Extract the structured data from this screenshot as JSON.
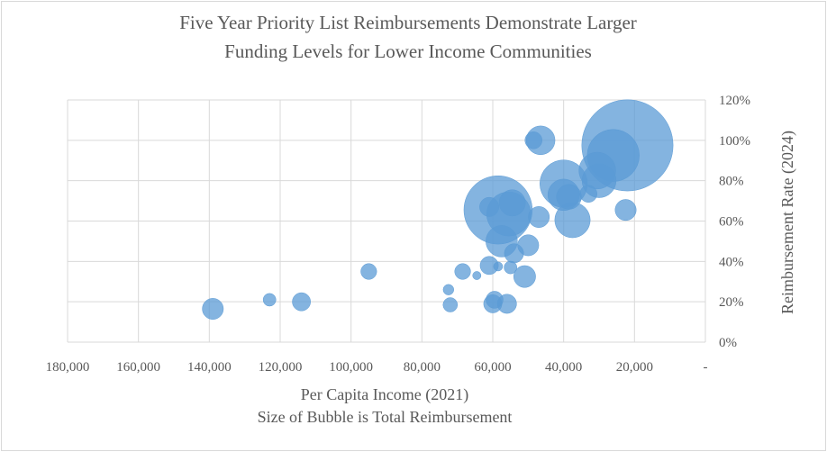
{
  "chart_data": {
    "type": "scatter",
    "title_lines": [
      "Five Year Priority List Reimbursements Demonstrate Larger",
      "Funding Levels  for Lower Income Communities"
    ],
    "xlabel": "Per Capita Income (2021)",
    "xlabel_note": "Size of Bubble is Total Reimbursement",
    "ylabel": "Reimbursement Rate (2024)",
    "x_reversed": true,
    "xlim": [
      0,
      180000
    ],
    "ylim": [
      0,
      1.2
    ],
    "x_ticks": [
      {
        "value": 180000,
        "label": "180,000"
      },
      {
        "value": 160000,
        "label": "160,000"
      },
      {
        "value": 140000,
        "label": "140,000"
      },
      {
        "value": 120000,
        "label": "120,000"
      },
      {
        "value": 100000,
        "label": "100,000"
      },
      {
        "value": 80000,
        "label": "80,000"
      },
      {
        "value": 60000,
        "label": "60,000"
      },
      {
        "value": 40000,
        "label": "40,000"
      },
      {
        "value": 20000,
        "label": "20,000"
      },
      {
        "value": 0,
        "label": "-"
      }
    ],
    "y_ticks": [
      {
        "value": 0,
        "label": "0%"
      },
      {
        "value": 0.2,
        "label": "20%"
      },
      {
        "value": 0.4,
        "label": "40%"
      },
      {
        "value": 0.6,
        "label": "60%"
      },
      {
        "value": 0.8,
        "label": "80%"
      },
      {
        "value": 1.0,
        "label": "100%"
      },
      {
        "value": 1.2,
        "label": "120%"
      }
    ],
    "y_axis_position": "right",
    "grid": true,
    "bubble_color": "#5b9bd5",
    "points": [
      {
        "x": 139000,
        "y": 0.165,
        "size": 9
      },
      {
        "x": 123000,
        "y": 0.21,
        "size": 2
      },
      {
        "x": 114000,
        "y": 0.2,
        "size": 6
      },
      {
        "x": 95000,
        "y": 0.35,
        "size": 4
      },
      {
        "x": 72000,
        "y": 0.185,
        "size": 3
      },
      {
        "x": 72500,
        "y": 0.26,
        "size": 1
      },
      {
        "x": 68500,
        "y": 0.35,
        "size": 4
      },
      {
        "x": 64500,
        "y": 0.33,
        "size": 0.3
      },
      {
        "x": 61000,
        "y": 0.38,
        "size": 6
      },
      {
        "x": 59500,
        "y": 0.21,
        "size": 5
      },
      {
        "x": 60000,
        "y": 0.19,
        "size": 6
      },
      {
        "x": 56000,
        "y": 0.19,
        "size": 7
      },
      {
        "x": 58500,
        "y": 0.375,
        "size": 0.5
      },
      {
        "x": 55000,
        "y": 0.37,
        "size": 2
      },
      {
        "x": 54000,
        "y": 0.44,
        "size": 7
      },
      {
        "x": 51000,
        "y": 0.325,
        "size": 10
      },
      {
        "x": 50000,
        "y": 0.48,
        "size": 9
      },
      {
        "x": 57500,
        "y": 0.5,
        "size": 25
      },
      {
        "x": 61000,
        "y": 0.67,
        "size": 7
      },
      {
        "x": 58500,
        "y": 0.655,
        "size": 145
      },
      {
        "x": 55500,
        "y": 0.635,
        "size": 55
      },
      {
        "x": 54500,
        "y": 0.69,
        "size": 16
      },
      {
        "x": 47000,
        "y": 0.62,
        "size": 9
      },
      {
        "x": 37500,
        "y": 0.605,
        "size": 33
      },
      {
        "x": 48500,
        "y": 1.0,
        "size": 5
      },
      {
        "x": 46500,
        "y": 1.0,
        "size": 20
      },
      {
        "x": 40000,
        "y": 0.785,
        "size": 65
      },
      {
        "x": 40000,
        "y": 0.73,
        "size": 25
      },
      {
        "x": 38500,
        "y": 0.72,
        "size": 14
      },
      {
        "x": 33000,
        "y": 0.735,
        "size": 5
      },
      {
        "x": 30000,
        "y": 0.8,
        "size": 30
      },
      {
        "x": 30500,
        "y": 0.85,
        "size": 36
      },
      {
        "x": 26000,
        "y": 0.925,
        "size": 80
      },
      {
        "x": 22000,
        "y": 0.975,
        "size": 270
      },
      {
        "x": 22500,
        "y": 0.655,
        "size": 9
      }
    ]
  }
}
